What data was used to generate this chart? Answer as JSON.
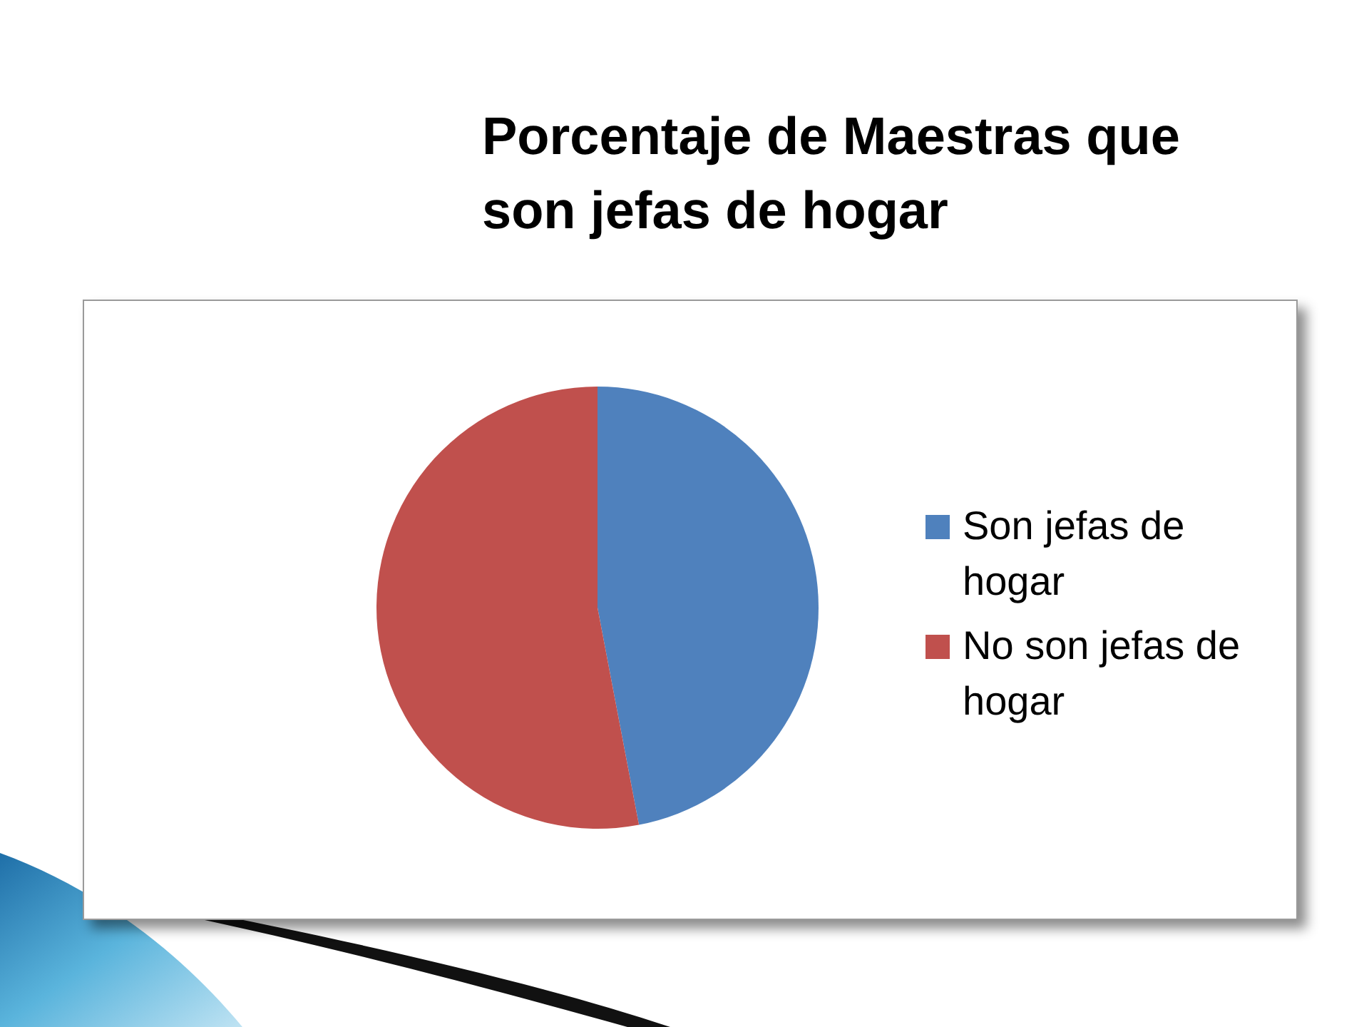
{
  "chart_data": {
    "type": "pie",
    "title": "Porcentaje de Maestras que son jefas de hogar",
    "categories": [
      "Son jefas de hogar",
      "No son jefas de hogar"
    ],
    "values": [
      47,
      53
    ],
    "colors": [
      "#4f81bd",
      "#c0504d"
    ],
    "legend": "right"
  }
}
